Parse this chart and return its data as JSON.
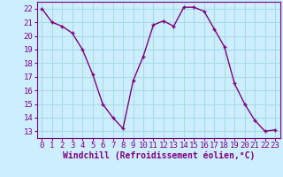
{
  "x": [
    0,
    1,
    2,
    3,
    4,
    5,
    6,
    7,
    8,
    9,
    10,
    11,
    12,
    13,
    14,
    15,
    16,
    17,
    18,
    19,
    20,
    21,
    22,
    23
  ],
  "y": [
    22,
    21,
    20.7,
    20.2,
    19,
    17.2,
    15,
    14,
    13.2,
    16.7,
    18.5,
    20.8,
    21.1,
    20.7,
    22.1,
    22.1,
    21.8,
    20.5,
    19.2,
    16.5,
    15,
    13.8,
    13,
    13.1
  ],
  "line_color": "#800080",
  "marker": "+",
  "bg_color": "#cceeff",
  "grid_color": "#aadddd",
  "xlabel": "Windchill (Refroidissement éolien,°C)",
  "xlim": [
    -0.5,
    23.5
  ],
  "ylim": [
    12.5,
    22.5
  ],
  "yticks": [
    13,
    14,
    15,
    16,
    17,
    18,
    19,
    20,
    21,
    22
  ],
  "xtick_labels": [
    "0",
    "1",
    "2",
    "3",
    "4",
    "5",
    "6",
    "7",
    "8",
    "9",
    "10",
    "11",
    "12",
    "13",
    "14",
    "15",
    "16",
    "17",
    "18",
    "19",
    "20",
    "21",
    "22",
    "23"
  ],
  "tick_color": "#800080",
  "label_fontsize": 7,
  "tick_fontsize": 6.5
}
